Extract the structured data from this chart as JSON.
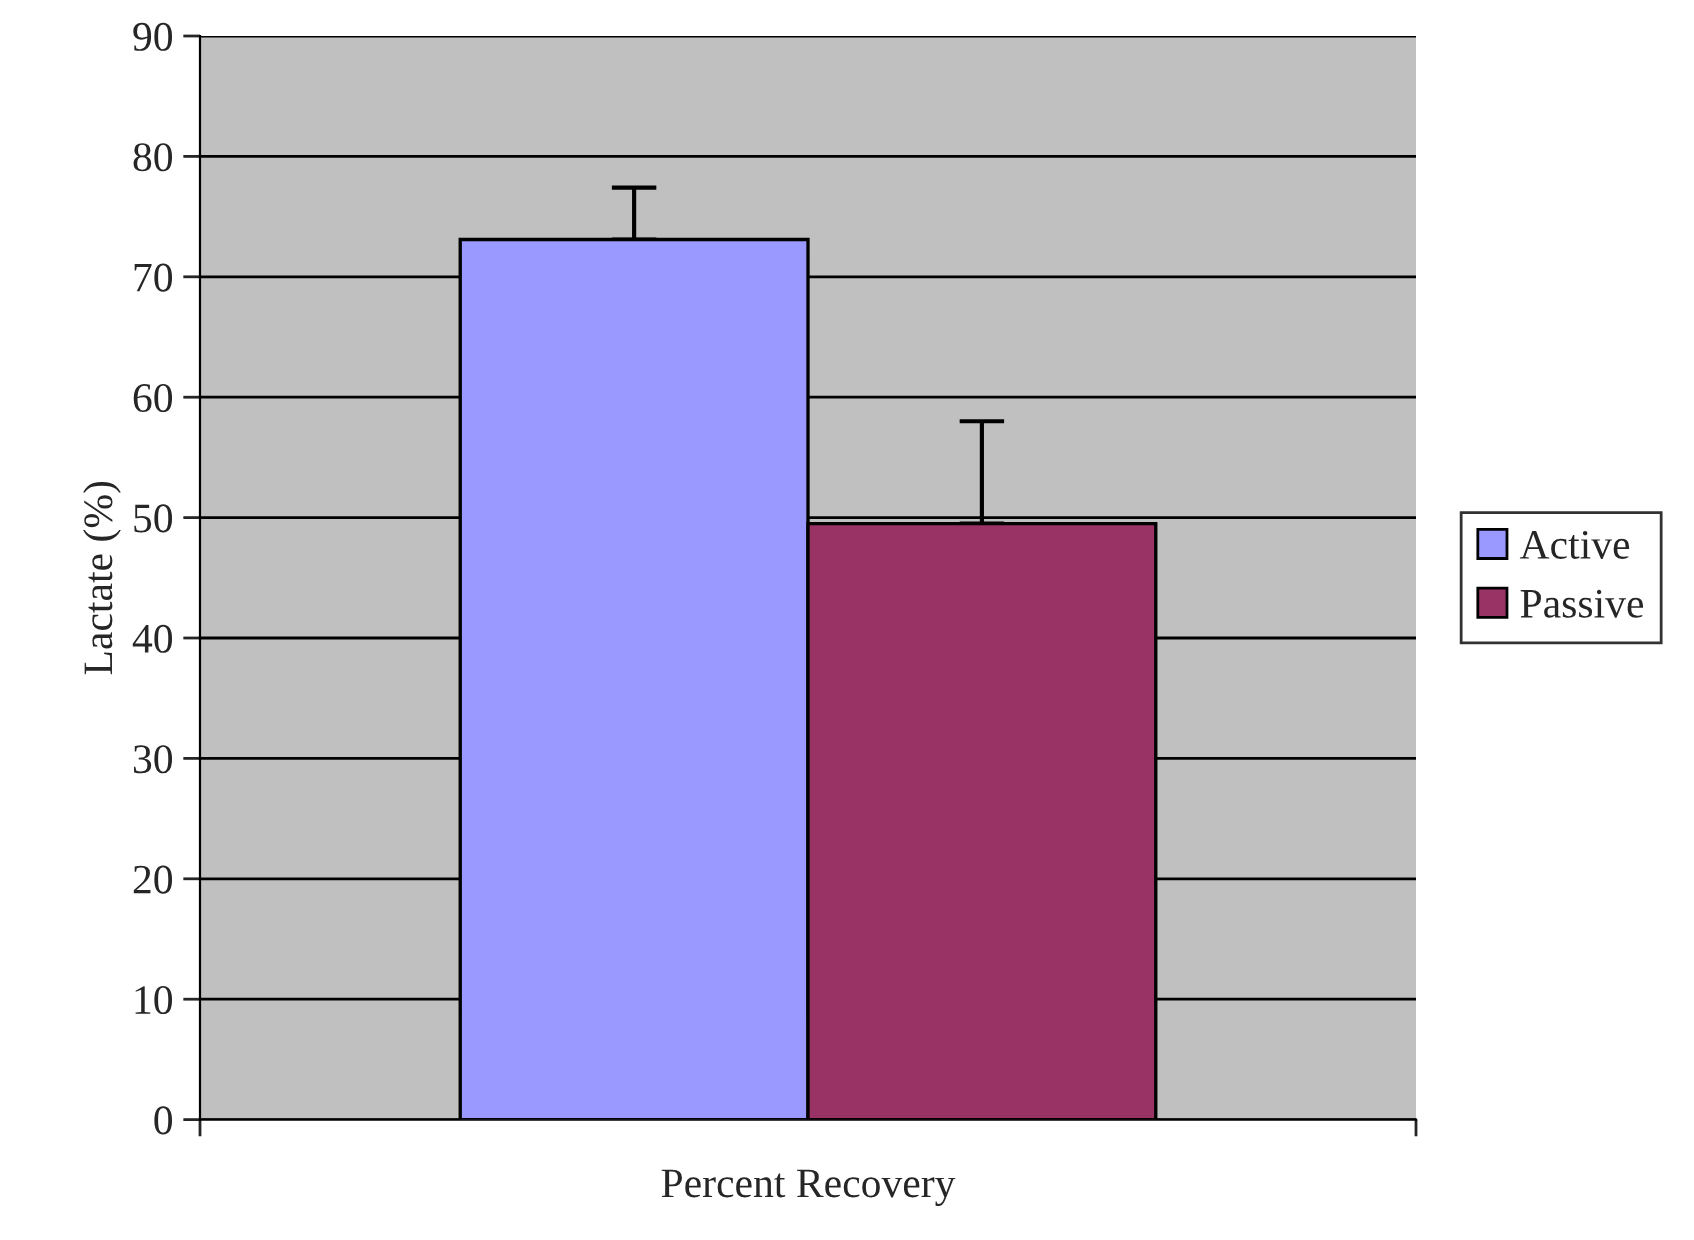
{
  "chart_data": {
    "type": "bar",
    "xlabel": "Percent Recovery",
    "ylabel": "Lactate (%)",
    "categories": [
      null
    ],
    "series": [
      {
        "name": "Active",
        "color": "#9999ff",
        "values": [
          73.1
        ],
        "errors": [
          [
            73.1,
            77.4
          ]
        ]
      },
      {
        "name": "Passive",
        "color": "#993366",
        "values": [
          49.5
        ],
        "errors": [
          [
            49.5,
            58.0
          ]
        ]
      }
    ],
    "ylim": [
      0,
      90
    ],
    "yticks": [
      0,
      10,
      20,
      30,
      40,
      50,
      60,
      70,
      80,
      90
    ],
    "grid": "y",
    "legend": "right"
  }
}
